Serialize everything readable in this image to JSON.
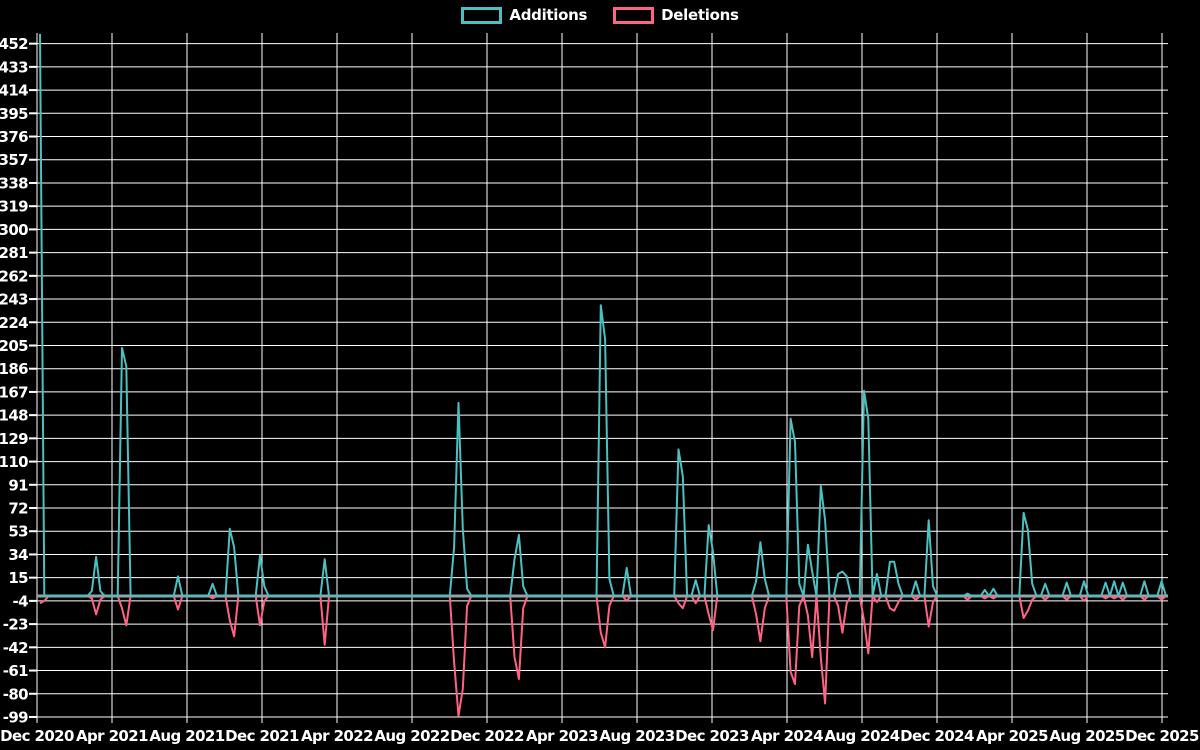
{
  "chart_data": {
    "type": "line",
    "title": "",
    "legend_position": "top",
    "background_color": "#000000",
    "grid": true,
    "grid_color": "#ffffff",
    "axis_text_color": "#ffffff",
    "zero_line_color": "#91a5af",
    "x_axis": {
      "unit": "weekly data points",
      "range": "Dec 2020 - Dec 2025",
      "tick_labels": [
        "Dec 2020",
        "Apr 2021",
        "Aug 2021",
        "Dec 2021",
        "Apr 2022",
        "Aug 2022",
        "Dec 2022",
        "Apr 2023",
        "Aug 2023",
        "Dec 2023",
        "Apr 2024",
        "Aug 2024",
        "Dec 2024",
        "Apr 2025",
        "Aug 2025",
        "Dec 2025"
      ]
    },
    "y_axis": {
      "min": -99,
      "max": 452,
      "step": 19,
      "tick_labels": [
        452,
        433,
        414,
        395,
        376,
        357,
        338,
        319,
        300,
        281,
        262,
        243,
        224,
        205,
        186,
        167,
        148,
        129,
        110,
        91,
        72,
        53,
        34,
        15,
        -4,
        -23,
        -42,
        -61,
        -80,
        -99
      ]
    },
    "series": [
      {
        "name": "Additions",
        "color": "#4bc0c0"
      },
      {
        "name": "Deletions",
        "color": "#ff6384"
      }
    ],
    "weeks_total": 262,
    "points_format": "[week_index, additions, deletions]; weeks not listed have value 0",
    "points": [
      [
        0,
        460,
        -6
      ],
      [
        1,
        0,
        -4
      ],
      [
        12,
        4,
        -2
      ],
      [
        13,
        32,
        -15
      ],
      [
        14,
        4,
        -3
      ],
      [
        19,
        203,
        -10
      ],
      [
        20,
        188,
        -24
      ],
      [
        32,
        16,
        -11
      ],
      [
        40,
        10,
        -2
      ],
      [
        44,
        55,
        -20
      ],
      [
        45,
        40,
        -33
      ],
      [
        51,
        33,
        -24
      ],
      [
        52,
        8,
        -4
      ],
      [
        66,
        30,
        -40
      ],
      [
        96,
        40,
        -54
      ],
      [
        97,
        158,
        -98
      ],
      [
        98,
        55,
        -76
      ],
      [
        99,
        6,
        -8
      ],
      [
        110,
        30,
        -50
      ],
      [
        111,
        50,
        -68
      ],
      [
        112,
        8,
        -10
      ],
      [
        130,
        238,
        -30
      ],
      [
        131,
        210,
        -42
      ],
      [
        132,
        14,
        -8
      ],
      [
        136,
        23,
        -4
      ],
      [
        148,
        120,
        -6
      ],
      [
        149,
        98,
        -10
      ],
      [
        152,
        13,
        -6
      ],
      [
        155,
        58,
        -15
      ],
      [
        156,
        36,
        -28
      ],
      [
        166,
        12,
        -15
      ],
      [
        167,
        44,
        -37
      ],
      [
        168,
        14,
        -10
      ],
      [
        174,
        145,
        -62
      ],
      [
        175,
        126,
        -72
      ],
      [
        176,
        10,
        -8
      ],
      [
        178,
        42,
        -16
      ],
      [
        179,
        20,
        -50
      ],
      [
        181,
        90,
        -50
      ],
      [
        182,
        62,
        -88
      ],
      [
        185,
        18,
        -8
      ],
      [
        186,
        20,
        -30
      ],
      [
        187,
        16,
        -6
      ],
      [
        191,
        168,
        -20
      ],
      [
        192,
        145,
        -47
      ],
      [
        194,
        18,
        -5
      ],
      [
        197,
        28,
        -10
      ],
      [
        198,
        28,
        -12
      ],
      [
        199,
        10,
        -5
      ],
      [
        203,
        12,
        -3
      ],
      [
        206,
        62,
        -25
      ],
      [
        207,
        8,
        -5
      ],
      [
        215,
        2,
        -3
      ],
      [
        219,
        5,
        -2
      ],
      [
        221,
        6,
        -2
      ],
      [
        228,
        68,
        -18
      ],
      [
        229,
        54,
        -12
      ],
      [
        230,
        10,
        -3
      ],
      [
        233,
        10,
        -3
      ],
      [
        238,
        11,
        -3
      ],
      [
        242,
        12,
        -4
      ],
      [
        247,
        11,
        -2
      ],
      [
        249,
        12,
        -2
      ],
      [
        251,
        11,
        -3
      ],
      [
        256,
        12,
        -3
      ],
      [
        260,
        12,
        -3
      ]
    ]
  }
}
